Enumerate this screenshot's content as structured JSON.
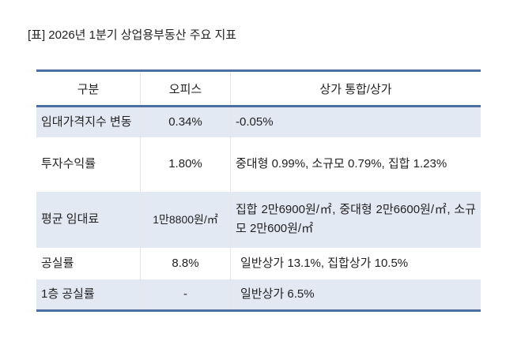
{
  "title": "[표] 2026년 1분기 상업용부동산 주요 지표",
  "table": {
    "headers": [
      "구분",
      "오피스",
      "상가 통합/상가"
    ],
    "rows": [
      [
        "임대가격지수 변동",
        "0.34%",
        "-0.05%"
      ],
      [
        "투자수익률",
        "1.80%",
        "중대형 0.99%, 소규모 0.79%, 집합 1.23%"
      ],
      [
        "평균 임대료",
        "1만8800원/㎡",
        "집합 2만6900원/㎡, 중대형 2만6600원/㎡, 소규모 2만600원/㎡"
      ],
      [
        "공실률",
        "8.8%",
        "일반상가 13.1%, 집합상가 10.5%"
      ],
      [
        "1층 공실률",
        "-",
        "일반상가 6.5%"
      ]
    ]
  },
  "colors": {
    "border": "#4a6fa0",
    "shade": "#e3e9f3"
  }
}
